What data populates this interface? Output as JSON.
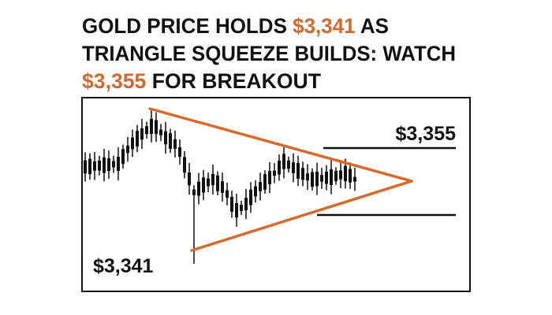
{
  "headline": {
    "lines": [
      [
        {
          "text": "GOLD PRICE HOLDS "
        },
        {
          "text": "$3,341",
          "highlight": true
        },
        {
          "text": " AS"
        }
      ],
      [
        {
          "text": "TRIANGLE SQUEEZE BUILDS: WATCH"
        }
      ],
      [
        {
          "text": "$3,355",
          "highlight": true
        },
        {
          "text": " FOR BREAKOUT"
        }
      ]
    ]
  },
  "labels": {
    "resistance": "$3,355",
    "support": "$3,341"
  }
}
